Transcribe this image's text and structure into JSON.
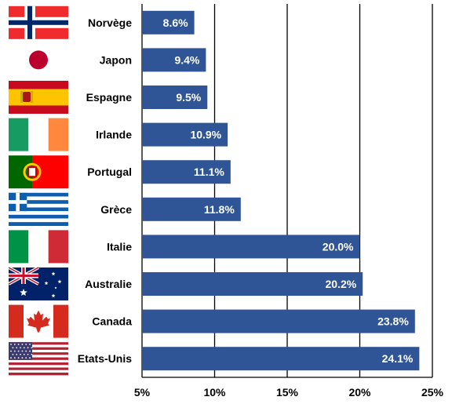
{
  "chart_data": {
    "type": "bar",
    "orientation": "horizontal",
    "categories": [
      "Norvège",
      "Japon",
      "Espagne",
      "Irlande",
      "Portugal",
      "Grèce",
      "Italie",
      "Australie",
      "Canada",
      "Etats-Unis"
    ],
    "values": [
      8.6,
      9.4,
      9.5,
      10.9,
      11.1,
      11.8,
      20.0,
      20.2,
      23.8,
      24.1
    ],
    "value_labels": [
      "8.6%",
      "9.4%",
      "9.5%",
      "10.9%",
      "11.1%",
      "11.8%",
      "20.0%",
      "20.2%",
      "23.8%",
      "24.1%"
    ],
    "xlim": [
      5,
      25
    ],
    "xticks": [
      5,
      10,
      15,
      20,
      25
    ],
    "xtick_labels": [
      "5%",
      "10%",
      "15%",
      "20%",
      "25%"
    ],
    "grid": true,
    "bar_color": "#2f5597",
    "flags": [
      "flag-norway-icon",
      "flag-japan-icon",
      "flag-spain-icon",
      "flag-ireland-icon",
      "flag-portugal-icon",
      "flag-greece-icon",
      "flag-italy-icon",
      "flag-australia-icon",
      "flag-canada-icon",
      "flag-usa-icon"
    ]
  }
}
